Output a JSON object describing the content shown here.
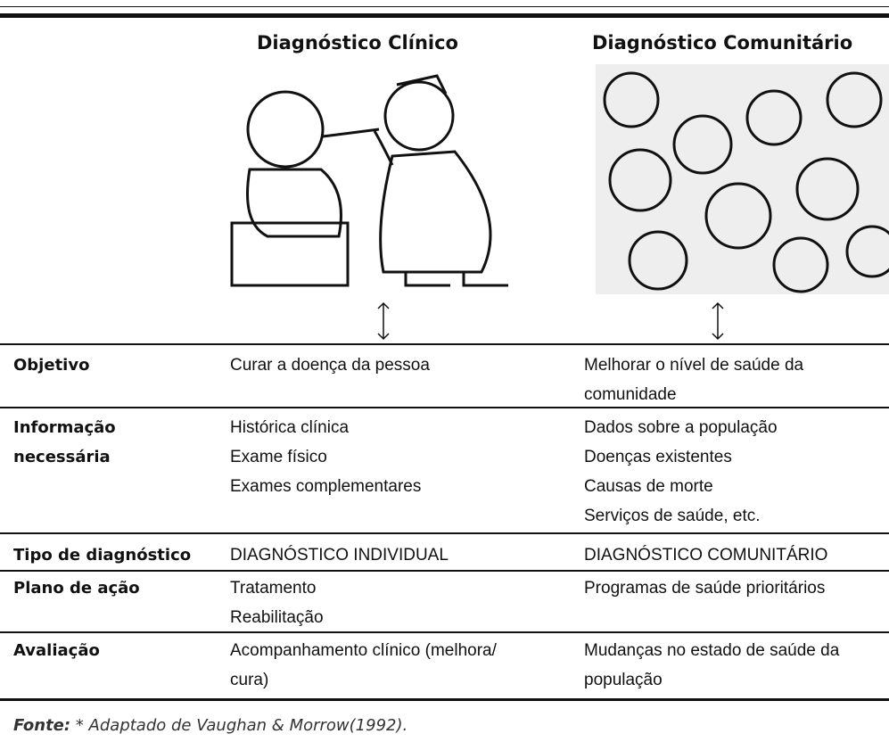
{
  "header": {
    "columns": [
      "Diagnóstico Clínico",
      "Diagnóstico Comunitário"
    ]
  },
  "table": {
    "rows": [
      {
        "label": [
          "Objetivo"
        ],
        "clinico": [
          "Curar a doença da pessoa"
        ],
        "comunitario": [
          "Melhorar o nível de saúde da",
          "comunidade"
        ]
      },
      {
        "label": [
          "Informação",
          "necessária"
        ],
        "clinico": [
          "Histórica clínica",
          "Exame físico",
          "Exames complementares"
        ],
        "comunitario": [
          "Dados sobre a população",
          "Doenças existentes",
          "Causas de morte",
          "Serviços de saúde, etc."
        ]
      },
      {
        "label": [
          "Tipo de diagnóstico"
        ],
        "clinico": [
          "DIAGNÓSTICO INDIVIDUAL"
        ],
        "comunitario": [
          "DIAGNÓSTICO COMUNITÁRIO"
        ]
      },
      {
        "label": [
          "Plano de ação"
        ],
        "clinico": [
          "Tratamento",
          "Reabilitação"
        ],
        "comunitario": [
          "Programas de saúde prioritários"
        ]
      },
      {
        "label": [
          "Avaliação"
        ],
        "clinico": [
          "Acompanhamento clínico (melhora/",
          "cura)"
        ],
        "comunitario": [
          "Mudanças no estado de saúde da",
          "população"
        ]
      }
    ]
  },
  "footer": {
    "source_label": "Fonte:",
    "source_text": "* Adaptado de Vaughan & Morrow(1992)."
  }
}
